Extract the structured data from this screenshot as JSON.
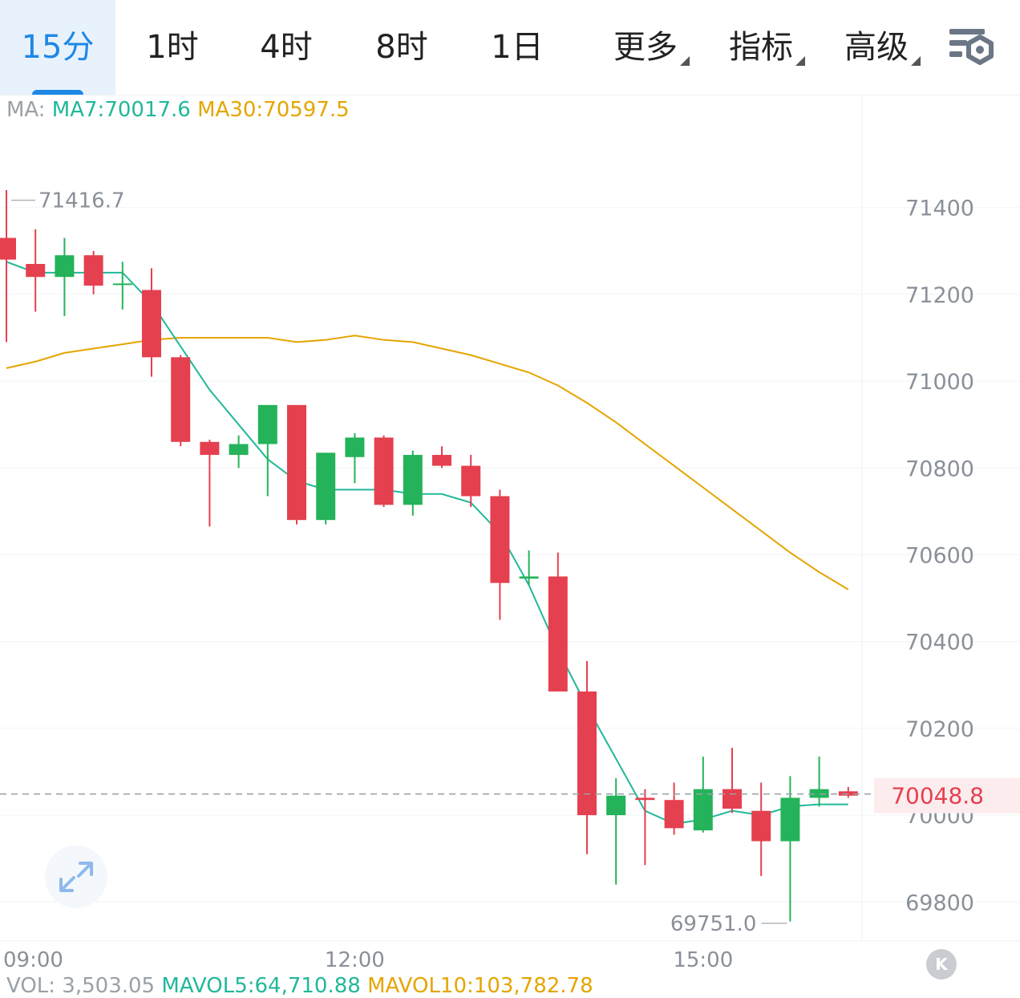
{
  "tabs": [
    {
      "label": "15分",
      "active": true
    },
    {
      "label": "1时"
    },
    {
      "label": "4时"
    },
    {
      "label": "8时"
    },
    {
      "label": "1日"
    },
    {
      "label": "更多",
      "dropdown": true
    },
    {
      "label": "指标",
      "dropdown": true
    },
    {
      "label": "高级",
      "dropdown": true
    }
  ],
  "settings_icon": "chart-settings-icon",
  "ma": {
    "prefix": "MA:",
    "ma7": "MA7:70017.6",
    "ma30": "MA30:70597.5"
  },
  "vol": {
    "prefix": "VOL: 3,503.05",
    "mavol5": "MAVOL5:64,710.88",
    "mavol10": "MAVOL10:103,782.78"
  },
  "colors": {
    "up": "#24b35a",
    "down": "#e5404f",
    "ma7": "#21b89a",
    "ma30": "#e5a500",
    "accent": "#1e88e5"
  },
  "expand_icon": "expand-arrows-icon",
  "k_button": "K",
  "chart_data": {
    "type": "candlestick",
    "interval": "15分",
    "y_ticks": [
      71400,
      71200,
      71000,
      70800,
      70600,
      70400,
      70200,
      70000,
      69800
    ],
    "ylim": [
      69710,
      71660
    ],
    "x_ticks": [
      {
        "label": "09:00",
        "index": 0
      },
      {
        "label": "12:00",
        "index": 12
      },
      {
        "label": "15:00",
        "index": 24
      }
    ],
    "last_price": 70048.8,
    "last_price_label": "70048.8",
    "high_marker": {
      "index": 0,
      "value": 71416.7,
      "label": "71416.7"
    },
    "low_marker": {
      "index": 27,
      "value": 69751.0,
      "label": "69751.0"
    },
    "candles": [
      {
        "o": 71330,
        "h": 71440,
        "l": 71090,
        "c": 71280
      },
      {
        "o": 71270,
        "h": 71350,
        "l": 71160,
        "c": 71240
      },
      {
        "o": 71240,
        "h": 71330,
        "l": 71150,
        "c": 71290
      },
      {
        "o": 71290,
        "h": 71300,
        "l": 71200,
        "c": 71220
      },
      {
        "o": 71225,
        "h": 71275,
        "l": 71165,
        "c": 71225
      },
      {
        "o": 71210,
        "h": 71260,
        "l": 71010,
        "c": 71055
      },
      {
        "o": 71055,
        "h": 71060,
        "l": 70850,
        "c": 70860
      },
      {
        "o": 70860,
        "h": 70865,
        "l": 70665,
        "c": 70830
      },
      {
        "o": 70830,
        "h": 70875,
        "l": 70800,
        "c": 70855
      },
      {
        "o": 70855,
        "h": 70945,
        "l": 70735,
        "c": 70945
      },
      {
        "o": 70945,
        "h": 70945,
        "l": 70670,
        "c": 70680
      },
      {
        "o": 70680,
        "h": 70835,
        "l": 70670,
        "c": 70835
      },
      {
        "o": 70825,
        "h": 70880,
        "l": 70765,
        "c": 70870
      },
      {
        "o": 70870,
        "h": 70875,
        "l": 70710,
        "c": 70715
      },
      {
        "o": 70715,
        "h": 70840,
        "l": 70690,
        "c": 70830
      },
      {
        "o": 70830,
        "h": 70850,
        "l": 70800,
        "c": 70805
      },
      {
        "o": 70805,
        "h": 70830,
        "l": 70710,
        "c": 70735
      },
      {
        "o": 70735,
        "h": 70750,
        "l": 70450,
        "c": 70535
      },
      {
        "o": 70545,
        "h": 70610,
        "l": 70530,
        "c": 70550
      },
      {
        "o": 70550,
        "h": 70605,
        "l": 70290,
        "c": 70285
      },
      {
        "o": 70285,
        "h": 70355,
        "l": 69910,
        "c": 70000
      },
      {
        "o": 70000,
        "h": 70085,
        "l": 69840,
        "c": 70045
      },
      {
        "o": 70040,
        "h": 70060,
        "l": 69885,
        "c": 70035
      },
      {
        "o": 70035,
        "h": 70075,
        "l": 69955,
        "c": 69970
      },
      {
        "o": 69965,
        "h": 70135,
        "l": 69960,
        "c": 70060
      },
      {
        "o": 70060,
        "h": 70155,
        "l": 70005,
        "c": 70015
      },
      {
        "o": 70010,
        "h": 70075,
        "l": 69860,
        "c": 69940
      },
      {
        "o": 69940,
        "h": 70090,
        "l": 69755,
        "c": 70040
      },
      {
        "o": 70040,
        "h": 70135,
        "l": 70020,
        "c": 70060
      },
      {
        "o": 70055,
        "h": 70065,
        "l": 70040,
        "c": 70045
      }
    ],
    "ma7": [
      71275,
      71250,
      71250,
      71250,
      71250,
      71180,
      71080,
      70980,
      70900,
      70820,
      70770,
      70750,
      70750,
      70750,
      70740,
      70740,
      70720,
      70650,
      70530,
      70380,
      70250,
      70130,
      70010,
      69980,
      69990,
      70010,
      70000,
      70020,
      70025,
      70025
    ],
    "ma30": [
      71030,
      71045,
      71065,
      71075,
      71085,
      71095,
      71100,
      71100,
      71100,
      71100,
      71090,
      71095,
      71105,
      71095,
      71090,
      71075,
      71060,
      71040,
      71020,
      70990,
      70950,
      70905,
      70855,
      70805,
      70755,
      70705,
      70655,
      70605,
      70560,
      70520
    ]
  }
}
